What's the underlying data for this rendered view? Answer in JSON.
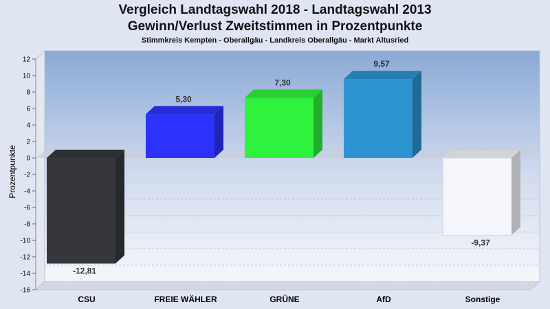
{
  "chart_data": {
    "type": "bar",
    "title": "Vergleich Landtagswahl 2018 - Landtagswahl 2013",
    "subtitle": "Gewinn/Verlust Zweitstimmen in Prozentpunkte",
    "subsubtitle": "Stimmkreis Kempten - Oberallgäu - Landkreis Oberallgäu - Markt Altusried",
    "ylabel": "Prozentpunkte",
    "xlabel": "",
    "ylim": [
      -16,
      12
    ],
    "yticks": [
      12,
      10,
      8,
      6,
      4,
      2,
      0,
      -2,
      -4,
      -6,
      -8,
      -10,
      -12,
      -14,
      -16
    ],
    "grid": true,
    "categories": [
      "CSU",
      "FREIE WÄHLER",
      "GRÜNE",
      "AfD",
      "Sonstige"
    ],
    "values": [
      -12.81,
      5.3,
      7.3,
      9.57,
      -9.37
    ],
    "value_labels": [
      "-12,81",
      "5,30",
      "7,30",
      "9,57",
      "-9,37"
    ],
    "colors": [
      "#35373c",
      "#2c32fb",
      "#2ef23c",
      "#2d93d1",
      "#f4f6fc"
    ]
  }
}
